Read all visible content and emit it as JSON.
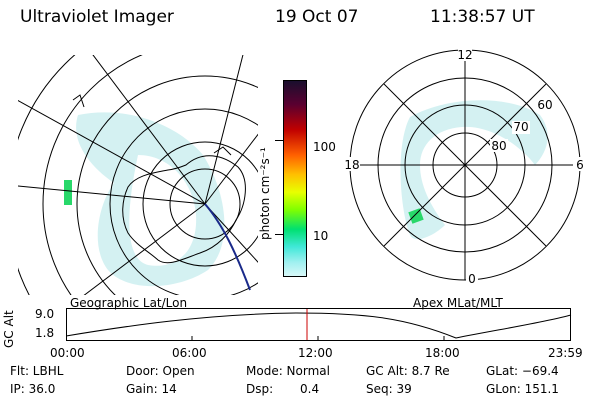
{
  "header": {
    "instrument": "Ultraviolet Imager",
    "date": "19 Oct 07",
    "time": "11:38:57 UT"
  },
  "geo_panel": {
    "label": "Geographic Lat/Lon"
  },
  "mag_panel": {
    "label": "Apex MLat/MLT",
    "mlt_labels": [
      "12",
      "18",
      "6",
      "0"
    ],
    "lat_labels": [
      "60",
      "70",
      "80"
    ]
  },
  "colorbar": {
    "unit_label": "photon cm⁻²s⁻¹",
    "tick_labels": [
      "100",
      "10"
    ],
    "colors": [
      "#1a0f2e",
      "#5a0030",
      "#c00000",
      "#ff6000",
      "#ffc000",
      "#e8ff00",
      "#80ff00",
      "#00e070",
      "#40e8d8",
      "#a0f0f0",
      "#d8f8f8"
    ]
  },
  "timeline": {
    "axis_title": "GC Alt",
    "y_labels": [
      "9.0",
      "1.8"
    ],
    "x_labels": [
      "00:00",
      "06:00",
      "12:00",
      "18:00",
      "23:59"
    ],
    "current_time_color": "#cc0000"
  },
  "status": {
    "flt": "Flt: LBHL",
    "door": "Door: Open",
    "mode": "Mode: Normal",
    "gc_alt": "GC Alt: 8.7 Re",
    "glat": "GLat: −69.4",
    "ip": "IP: 36.0",
    "gain": "Gain: 14",
    "dsp_label": "Dsp:",
    "dsp_value": "0.4",
    "seq": "Seq: 39",
    "glon": "GLon: 151.1"
  }
}
